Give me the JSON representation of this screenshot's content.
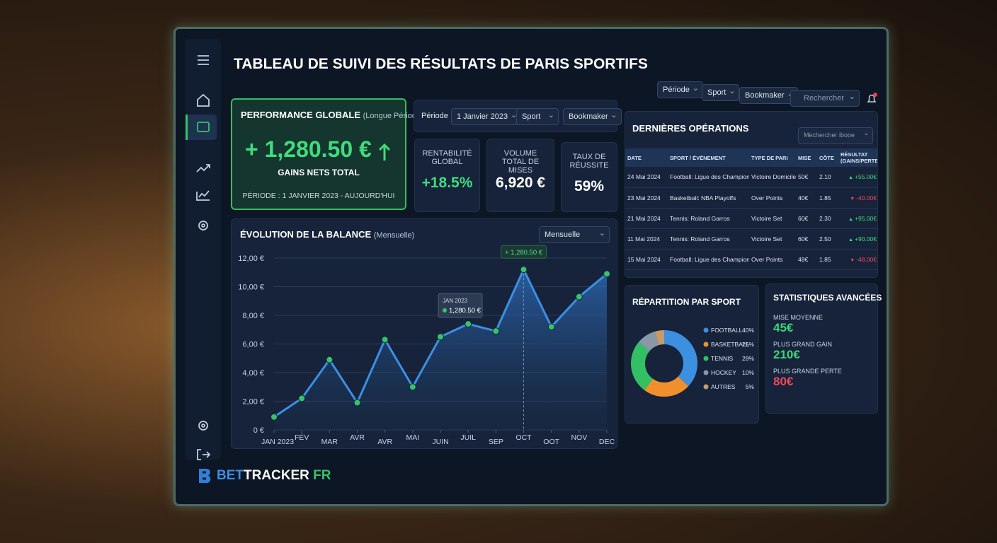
{
  "header": {
    "title": "TABLEAU DE SUIVI DES RÉSULTATS DE PARIS SPORTIFS",
    "filters": [
      "Période",
      "Sport",
      "Bookmaker"
    ],
    "search": "Rechercher"
  },
  "performance": {
    "title": "PERFORMANCE GLOBALE",
    "subtitle": "(Longue Période)",
    "amount": "+ 1,280.50 €",
    "caption": "GAINS NETS TOTAL",
    "period": "PÉRIODE : 1 JANVIER 2023 - AUJOURD'HUI"
  },
  "filter_bar": {
    "label": "Période",
    "date": "1 Janvier 2023",
    "sport": "Sport",
    "bookmaker": "Bookmaker"
  },
  "kpis": [
    {
      "label": "RENTABILITÉ GLOBAL",
      "value": "+18.5%"
    },
    {
      "label": "VOLUME TOTAL DE MISES",
      "value": "6,920 €"
    },
    {
      "label": "TAUX DE RÉUSSITE",
      "value": "59%"
    }
  ],
  "balance": {
    "title": "ÉVOLUTION DE LA BALANCE",
    "subtitle": "(Mensuelle)",
    "dropdown": "Mensuelle",
    "type": "line",
    "line_color": "#3b8fe6",
    "point_color": "#35c46a",
    "categories": [
      "JAN 2023",
      "FÉV",
      "MAR",
      "AVR",
      "AVR",
      "MAI",
      "JUIN",
      "JUIL",
      "SEP",
      "OCT",
      "OOT",
      "NOV",
      "DEC"
    ],
    "values": [
      0.9,
      2.2,
      4.9,
      1.9,
      6.3,
      3.0,
      6.5,
      7.4,
      6.9,
      11.2,
      7.2,
      9.3,
      10.9
    ],
    "ylim": [
      0,
      12
    ],
    "yticks": [
      {
        "value": 0,
        "label": "0 €"
      },
      {
        "value": 2,
        "label": "2,00 €"
      },
      {
        "value": 4,
        "label": "4,00 €"
      },
      {
        "value": 6,
        "label": "6,00 €"
      },
      {
        "value": 8,
        "label": "8,00 €"
      },
      {
        "value": 10,
        "label": "10,00 €"
      },
      {
        "value": 12,
        "label": "12,00 €"
      }
    ],
    "peak_label": "+ 1,280.50 €",
    "tooltip": {
      "date": "JAN 2023",
      "value": "1,280.50 €"
    }
  },
  "operations": {
    "title": "DERNIÈRES OPÉRATIONS",
    "search": "Mechercher ibooe",
    "columns": [
      "DATE",
      "SPORT / ÉVÉNEMENT",
      "TYPE DE PARI",
      "MISE",
      "CÔTE",
      "RÉSULTAT (GAINS/PERTES)"
    ],
    "rows": [
      [
        "24 Mai 2024",
        "Football: Ligue des Champions",
        "Victoire Domicile",
        "50€",
        "2.10",
        "+55.00€"
      ],
      [
        "23 Mai 2024",
        "Basketball: NBA Playoffs",
        "Over Points",
        "40€",
        "1.85",
        "-40.00€"
      ],
      [
        "21 Mai 2024",
        "Tennis: Roland Garros",
        "Victoire Set",
        "60€",
        "2.30",
        "+95.00€"
      ],
      [
        "11 Mai 2024",
        "Tennis: Roland Garros",
        "Victoire Set",
        "60€",
        "2.50",
        "+90.00€"
      ],
      [
        "15 Mai 2024",
        "Football: Ligue des Champions",
        "Over Points",
        "48€",
        "1.85",
        "-48.00€"
      ]
    ]
  },
  "sport_split": {
    "title": "RÉPARTITION PAR SPORT",
    "items": [
      {
        "name": "FOOTBALL",
        "value": 40,
        "label": "40%",
        "color": "#3d8fe0"
      },
      {
        "name": "BASKETBALL",
        "value": 25,
        "label": "25%",
        "color": "#f0902c"
      },
      {
        "name": "TENNIS",
        "value": 28,
        "label": "28%",
        "color": "#33c065"
      },
      {
        "name": "HOCKEY",
        "value": 10,
        "label": "10%",
        "color": "#8a97a6"
      },
      {
        "name": "AUTRES",
        "value": 5,
        "label": "5%",
        "color": "#c79a6a"
      }
    ]
  },
  "stats": {
    "title": "STATISTIQUES AVANCÉES",
    "items": [
      {
        "label": "MISE MOYENNE",
        "value": "45€",
        "color": "#3fd57a"
      },
      {
        "label": "PLUS GRAND GAIN",
        "value": "210€",
        "color": "#3fd57a"
      },
      {
        "label": "PLUS GRANDE PERTE",
        "value": "80€",
        "color": "#ef4b5a"
      }
    ]
  },
  "brand": {
    "bet": "BET",
    "tracker": "TRACKER",
    "fr": "FR"
  }
}
